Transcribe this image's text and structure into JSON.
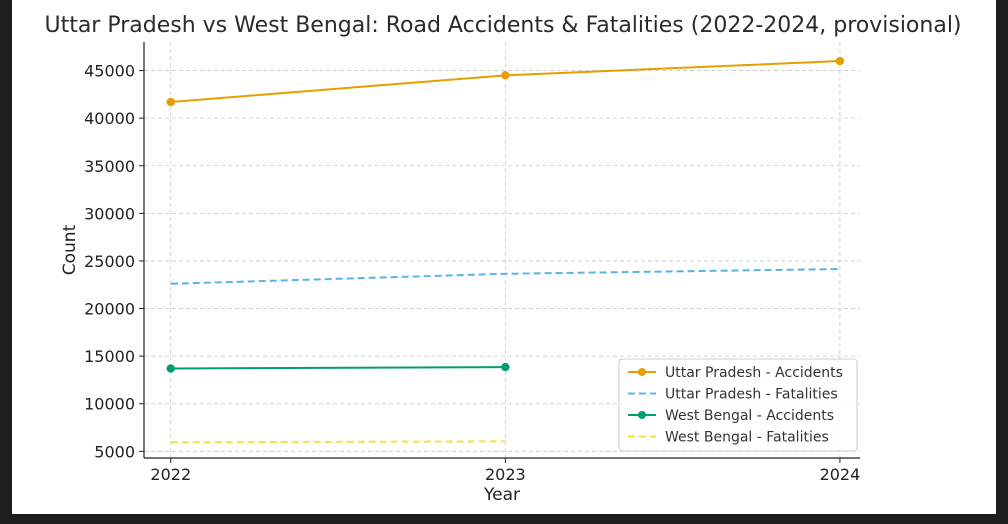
{
  "chart_data": {
    "type": "line",
    "title": "Uttar Pradesh vs West Bengal: Road Accidents & Fatalities (2022-2024, provisional)",
    "xlabel": "Year",
    "ylabel": "Count",
    "x": [
      "2022",
      "2023",
      "2024"
    ],
    "xlim": [
      2021.92,
      2024.06
    ],
    "ylim": [
      4300,
      48000
    ],
    "yticks": [
      5000,
      10000,
      15000,
      20000,
      25000,
      30000,
      35000,
      40000,
      45000
    ],
    "grid": true,
    "legend_position": "bottom-right",
    "series": [
      {
        "name": "Uttar Pradesh - Accidents",
        "x": [
          2022,
          2023,
          2024
        ],
        "values": [
          41700,
          44500,
          46000
        ],
        "color": "#E69F00",
        "style": "solid",
        "marker": true
      },
      {
        "name": "Uttar Pradesh - Fatalities",
        "x": [
          2022,
          2023,
          2024
        ],
        "values": [
          22600,
          23650,
          24150
        ],
        "color": "#56B4E9",
        "style": "dashed",
        "marker": false
      },
      {
        "name": "West Bengal - Accidents",
        "x": [
          2022,
          2023
        ],
        "values": [
          13700,
          13850
        ],
        "color": "#009E73",
        "style": "solid",
        "marker": true
      },
      {
        "name": "West Bengal - Fatalities",
        "x": [
          2022,
          2023
        ],
        "values": [
          5950,
          6050
        ],
        "color": "#F0E442",
        "style": "dashed",
        "marker": false
      }
    ]
  }
}
